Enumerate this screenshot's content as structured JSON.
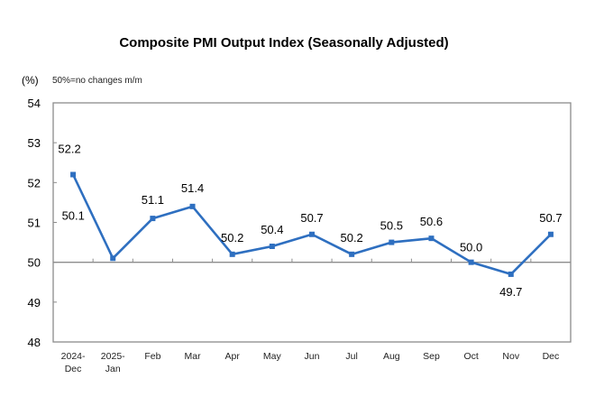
{
  "chart_data": {
    "type": "line",
    "title": "Composite PMI Output Index (Seasonally Adjusted)",
    "unit_label": "(%)",
    "note": "50%=no changes m/m",
    "xlabel": "",
    "ylabel": "(%)",
    "ylim": [
      48,
      54
    ],
    "yticks": [
      "48",
      "49",
      "50",
      "51",
      "52",
      "53",
      "54"
    ],
    "baseline": 50,
    "grid": false,
    "legend": "none",
    "line_color": "#2e6fc0",
    "categories": [
      [
        "2024-",
        "Dec"
      ],
      [
        "2025-",
        "Jan"
      ],
      [
        "Feb"
      ],
      [
        "Mar"
      ],
      [
        "Apr"
      ],
      [
        "May"
      ],
      [
        "Jun"
      ],
      [
        "Jul"
      ],
      [
        "Aug"
      ],
      [
        "Sep"
      ],
      [
        "Oct"
      ],
      [
        "Nov"
      ],
      [
        "Dec"
      ]
    ],
    "series": [
      {
        "name": "Composite PMI Output Index",
        "values": [
          52.2,
          50.1,
          51.1,
          51.4,
          50.2,
          50.4,
          50.7,
          50.2,
          50.5,
          50.6,
          50.0,
          49.7,
          50.7
        ],
        "labels": [
          "52.2",
          "50.1",
          "51.1",
          "51.4",
          "50.2",
          "50.4",
          "50.7",
          "50.2",
          "50.5",
          "50.6",
          "50.0",
          "49.7",
          "50.7"
        ]
      }
    ]
  }
}
